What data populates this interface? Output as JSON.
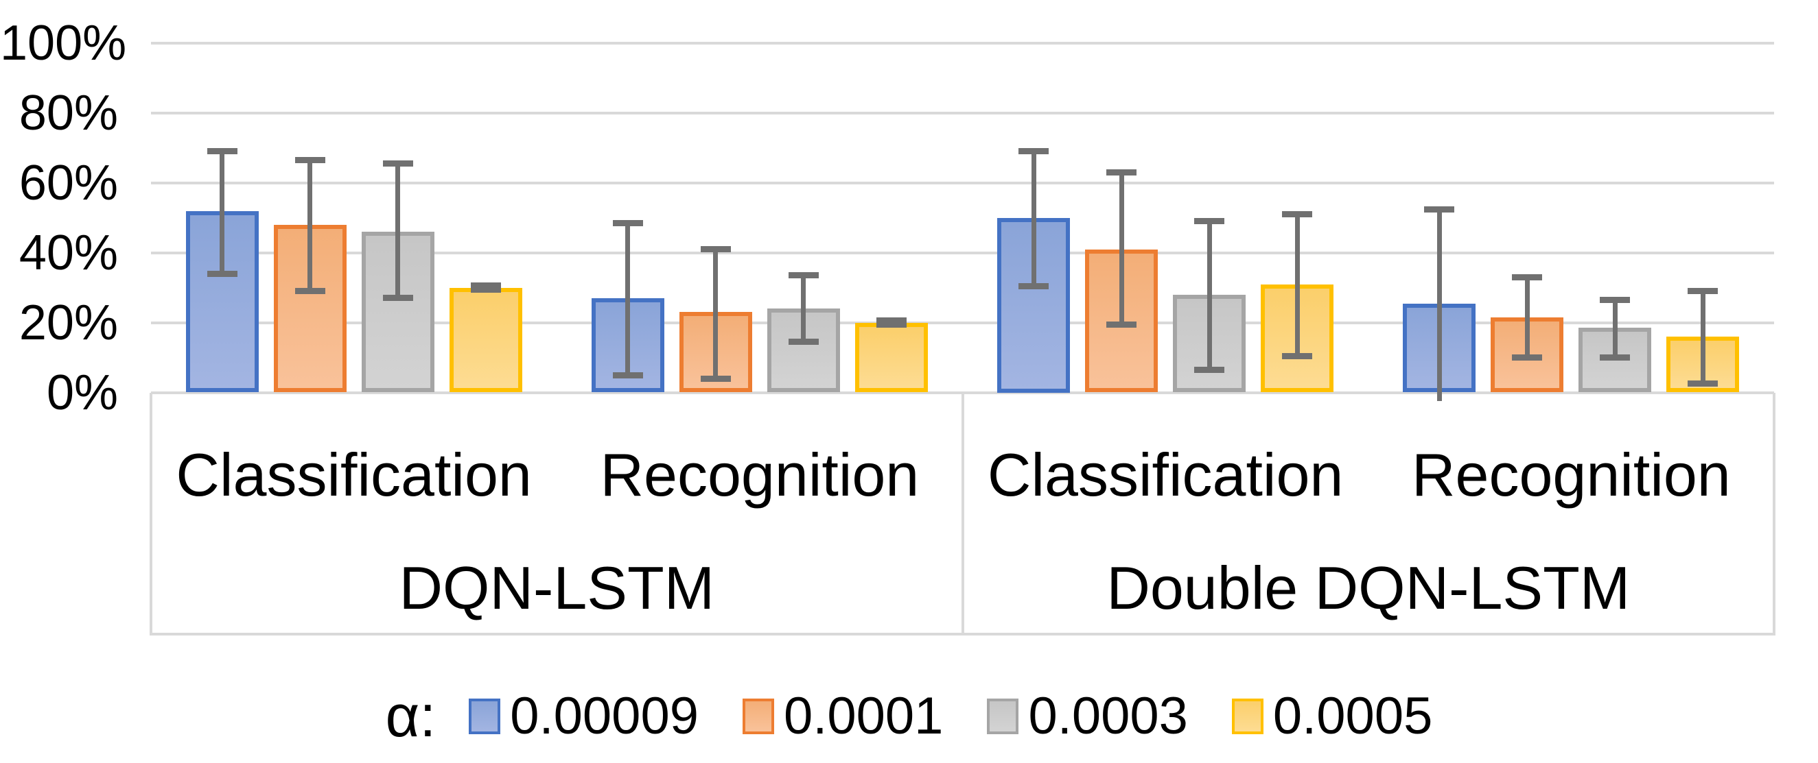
{
  "colors": {
    "background": "#FFFFFF",
    "gridline": "#D9D9D9",
    "error_bar": "#707070",
    "text": "#000000"
  },
  "chart_data": {
    "type": "bar",
    "title": "",
    "xlabel": "",
    "ylabel": "",
    "ylim": [
      0,
      100
    ],
    "grid": true,
    "error_bars": true,
    "y_axis": {
      "tick_values": [
        0,
        20,
        40,
        60,
        80,
        100
      ],
      "ticks": [
        "0%",
        "20%",
        "40%",
        "60%",
        "80%",
        "100%"
      ]
    },
    "legend": {
      "prefix": "α:",
      "position": "bottom",
      "series": [
        {
          "name": "0.00009",
          "fill_top": "#8AA4D8",
          "fill_bottom": "#A3B5E2",
          "border": "#4472C4"
        },
        {
          "name": "0.0001",
          "fill_top": "#F3AE77",
          "fill_bottom": "#F9C29A",
          "border": "#ED7D31"
        },
        {
          "name": "0.0003",
          "fill_top": "#C6C6C6",
          "fill_bottom": "#D3D3D3",
          "border": "#A5A5A5"
        },
        {
          "name": "0.0005",
          "fill_top": "#FBCF6B",
          "fill_bottom": "#FDDC93",
          "border": "#FFC000"
        }
      ]
    },
    "groups": [
      {
        "label": "DQN-LSTM",
        "categories": [
          {
            "label": "Classification",
            "bars": [
              {
                "series": "0.00009",
                "value": 52,
                "err_low": 34,
                "err_high": 69
              },
              {
                "series": "0.0001",
                "value": 48,
                "err_low": 29,
                "err_high": 66.5
              },
              {
                "series": "0.0003",
                "value": 46,
                "err_low": 27,
                "err_high": 65.5
              },
              {
                "series": "0.0005",
                "value": 30,
                "err_low": 29.4,
                "err_high": 30.7
              }
            ]
          },
          {
            "label": "Recognition",
            "bars": [
              {
                "series": "0.00009",
                "value": 27,
                "err_low": 5,
                "err_high": 48.5
              },
              {
                "series": "0.0001",
                "value": 23,
                "err_low": 4,
                "err_high": 41
              },
              {
                "series": "0.0003",
                "value": 24,
                "err_low": 14.5,
                "err_high": 33.5
              },
              {
                "series": "0.0005",
                "value": 20,
                "err_low": 19.4,
                "err_high": 20.7
              }
            ]
          }
        ]
      },
      {
        "label": "Double DQN-LSTM",
        "categories": [
          {
            "label": "Classification",
            "bars": [
              {
                "series": "0.00009",
                "value": 50,
                "err_low": 30.5,
                "err_high": 69
              },
              {
                "series": "0.0001",
                "value": 41,
                "err_low": 19.5,
                "err_high": 63
              },
              {
                "series": "0.0003",
                "value": 28,
                "err_low": 6.5,
                "err_high": 49
              },
              {
                "series": "0.0005",
                "value": 31,
                "err_low": 10.5,
                "err_high": 51
              }
            ]
          },
          {
            "label": "Recognition",
            "bars": [
              {
                "series": "0.00009",
                "value": 25.5,
                "err_low": -2.5,
                "err_high": 52.5
              },
              {
                "series": "0.0001",
                "value": 21.5,
                "err_low": 10,
                "err_high": 33
              },
              {
                "series": "0.0003",
                "value": 18.5,
                "err_low": 10,
                "err_high": 26.5
              },
              {
                "series": "0.0005",
                "value": 16,
                "err_low": 2.5,
                "err_high": 29
              }
            ]
          }
        ]
      }
    ]
  }
}
